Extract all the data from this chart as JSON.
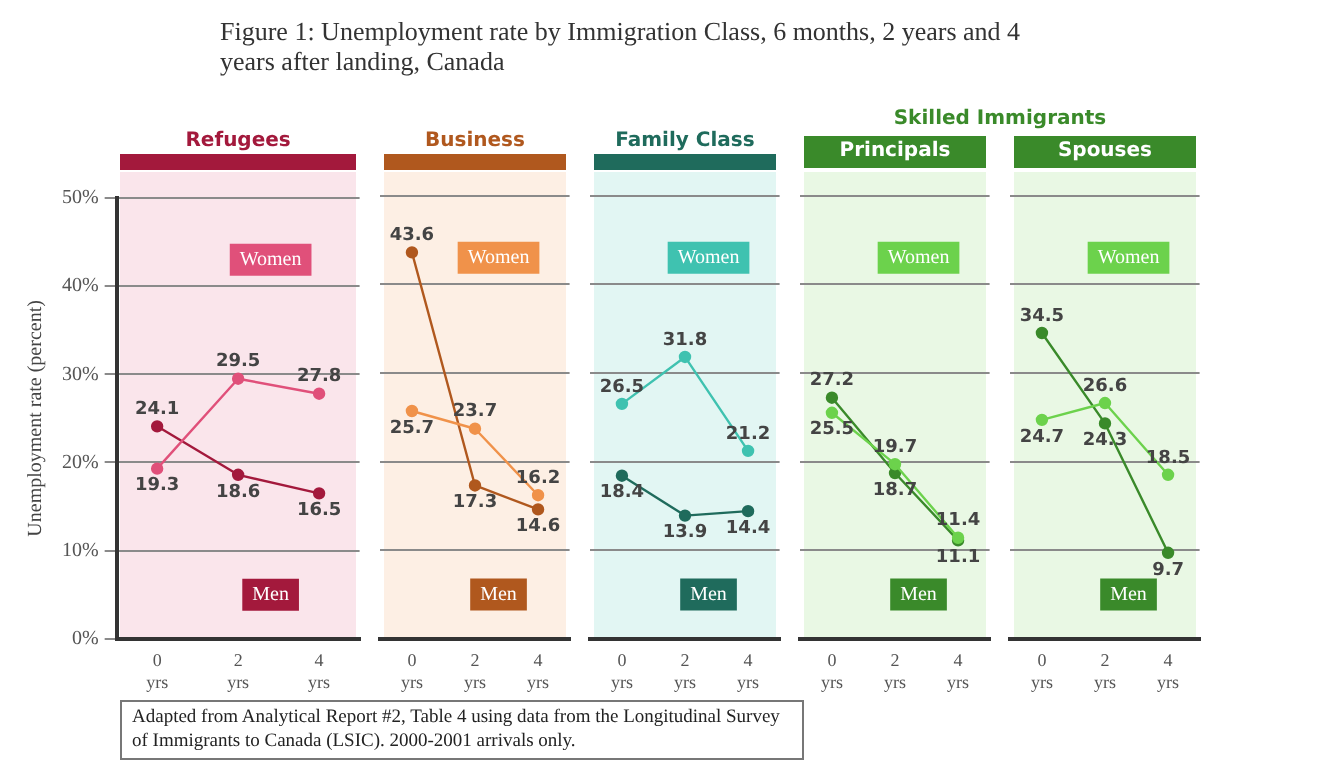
{
  "chart_data": [
    {
      "type": "line",
      "title": "Refugees",
      "ylabel": "Unemployment rate (percent)",
      "categories": [
        "0 yrs",
        "2 yrs",
        "4 yrs"
      ],
      "series": [
        {
          "name": "Women",
          "color": "#e0507a",
          "values": [
            19.3,
            29.5,
            27.8
          ]
        },
        {
          "name": "Men",
          "color": "#a3193c",
          "values": [
            24.1,
            18.6,
            16.5
          ]
        }
      ],
      "ylim": [
        0,
        50
      ],
      "yticks": [
        {
          "value": 0,
          "label": "0%"
        },
        {
          "value": 10,
          "label": "10%"
        },
        {
          "value": 20,
          "label": "20%"
        },
        {
          "value": 30,
          "label": "30%"
        },
        {
          "value": 40,
          "label": "40%"
        },
        {
          "value": 50,
          "label": "50%"
        }
      ],
      "grid": "y",
      "data_labels": true,
      "marker": "circle",
      "legend": false,
      "annotations": [
        "Figure 1: Unemployment rate by Immigration Class, 6 months, 2 years and 4 years after landing, Canada",
        "Adapted from Analytical Report #2, Table 4 using data from the Longitudinal Survey of Immigrants to Canada (LSIC).  2000-2001 arrivals only."
      ]
    },
    {
      "type": "line",
      "title": "Business",
      "categories": [
        "0 yrs",
        "2 yrs",
        "4 yrs"
      ],
      "series": [
        {
          "name": "Women",
          "color": "#f0924a",
          "values": [
            25.7,
            23.7,
            16.2
          ]
        },
        {
          "name": "Men",
          "color": "#b0581e",
          "values": [
            43.6,
            17.3,
            14.6
          ]
        }
      ],
      "ylim": [
        0,
        50
      ],
      "yticks": [
        0,
        10,
        20,
        30,
        40,
        50
      ],
      "grid": "y",
      "data_labels": true,
      "marker": "circle",
      "legend": false,
      "tick_labels": "x"
    },
    {
      "type": "line",
      "title": "Family Class",
      "categories": [
        "0 yrs",
        "2 yrs",
        "4 yrs"
      ],
      "series": [
        {
          "name": "Women",
          "color": "#3fc2b0",
          "values": [
            26.5,
            31.8,
            21.2
          ]
        },
        {
          "name": "Men",
          "color": "#1f6b5c",
          "values": [
            18.4,
            13.9,
            14.4
          ]
        }
      ],
      "ylim": [
        0,
        50
      ],
      "yticks": [
        0,
        10,
        20,
        30,
        40,
        50
      ],
      "grid": "y",
      "data_labels": true,
      "marker": "circle",
      "legend": false,
      "tick_labels": "x"
    },
    {
      "type": "line",
      "title": "Principals",
      "categories": [
        "0 yrs",
        "2 yrs",
        "4 yrs"
      ],
      "series": [
        {
          "name": "Women",
          "color": "#6cd24c",
          "values": [
            25.5,
            19.7,
            11.4
          ]
        },
        {
          "name": "Men",
          "color": "#3a8a2a",
          "values": [
            27.2,
            18.7,
            11.1
          ]
        }
      ],
      "ylim": [
        0,
        50
      ],
      "yticks": [
        0,
        10,
        20,
        30,
        40,
        50
      ],
      "grid": "y",
      "data_labels": true,
      "marker": "circle",
      "legend": false,
      "tick_labels": "x",
      "annotations": [
        "Skilled Immigrants"
      ]
    },
    {
      "type": "line",
      "title": "Spouses",
      "categories": [
        "0 yrs",
        "2 yrs",
        "4 yrs"
      ],
      "series": [
        {
          "name": "Women",
          "color": "#6cd24c",
          "values": [
            24.7,
            26.6,
            18.5
          ]
        },
        {
          "name": "Men",
          "color": "#3a8a2a",
          "values": [
            34.5,
            24.3,
            9.7
          ]
        }
      ],
      "ylim": [
        0,
        50
      ],
      "yticks": [
        0,
        10,
        20,
        30,
        40,
        50
      ],
      "grid": "y",
      "data_labels": true,
      "marker": "circle",
      "legend": false,
      "tick_labels": "x"
    }
  ]
}
